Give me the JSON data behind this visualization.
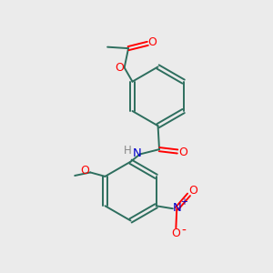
{
  "bg_color": "#ebebeb",
  "bond_color": "#2d6e5e",
  "atom_colors": {
    "O": "#ff0000",
    "N": "#0000cc",
    "C": "#2d6e5e",
    "H": "#888888"
  },
  "fig_size": [
    3.0,
    3.0
  ],
  "dpi": 100
}
